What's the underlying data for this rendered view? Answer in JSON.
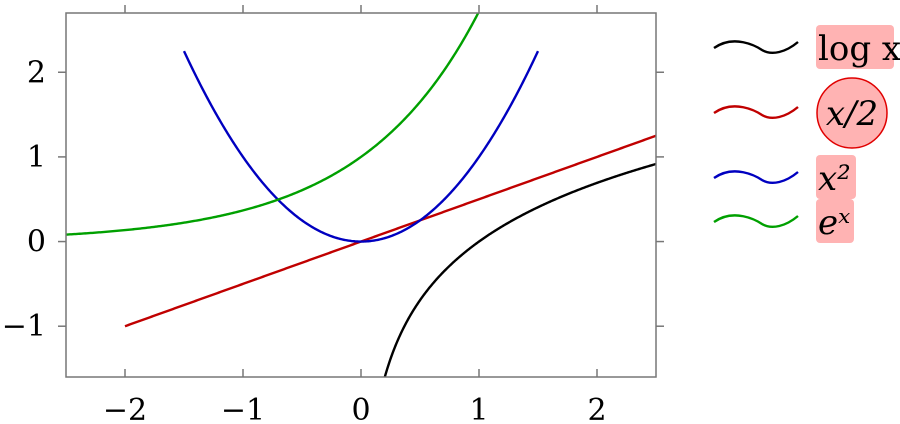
{
  "chart_data": {
    "type": "line",
    "title": "",
    "xlabel": "",
    "ylabel": "",
    "xlim": [
      -2.5,
      2.5
    ],
    "ylim": [
      -1.6,
      2.7
    ],
    "x_ticks": [
      -2,
      -1,
      0,
      1,
      2
    ],
    "y_ticks": [
      -1,
      0,
      1,
      2
    ],
    "x_tick_labels": [
      "−2",
      "−1",
      "0",
      "1",
      "2"
    ],
    "y_tick_labels": [
      "−1",
      "0",
      "1",
      "2"
    ],
    "grid": false,
    "legend_position": "outside-right",
    "series": [
      {
        "name": "log x",
        "function": "log(x)",
        "domain": [
          0.2,
          2.5
        ],
        "color": "#000000"
      },
      {
        "name": "x/2",
        "function": "x/2",
        "domain": [
          -2,
          2.5
        ],
        "color": "#c00000"
      },
      {
        "name": "x²",
        "function": "x^2",
        "domain": [
          -1.5,
          1.5
        ],
        "color": "#0000c0"
      },
      {
        "name": "eˣ",
        "function": "exp(x)",
        "domain": [
          -2.5,
          1.0
        ],
        "color": "#00a000"
      }
    ],
    "legend_highlight_color": "#ffb3b3",
    "legend_circle_color": "#e00000",
    "legend_circled_entry": "x/2"
  }
}
